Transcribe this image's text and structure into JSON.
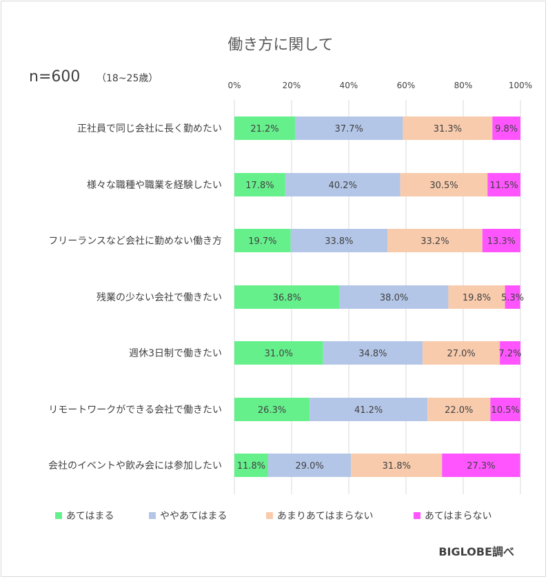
{
  "chart_data": {
    "type": "bar",
    "orientation": "horizontal-stacked-100",
    "title": "働き方に関して",
    "sample_main": "n=600",
    "sample_sub": "（18~25歳）",
    "source_note": "BIGLOBE調べ",
    "xlim": [
      0,
      100
    ],
    "x_ticks": [
      "0%",
      "20%",
      "40%",
      "60%",
      "80%",
      "100%"
    ],
    "grid": true,
    "legend_position": "bottom",
    "categories": [
      "正社員で同じ会社に長く勤めたい",
      "様々な職種や職業を経験したい",
      "フリーランスなど会社に勤めない働き方",
      "残業の少ない会社で働きたい",
      "週休3日制で働きたい",
      "リモートワークができる会社で働きたい",
      "会社のイベントや飲み会には参加したい"
    ],
    "series": [
      {
        "name": "あてはまる",
        "color": "#66f08c",
        "values": [
          21.2,
          17.8,
          19.7,
          36.8,
          31.0,
          26.3,
          11.8
        ],
        "labels": [
          "21.2%",
          "17.8%",
          "19.7%",
          "36.8%",
          "31.0%",
          "26.3%",
          "11.8%"
        ]
      },
      {
        "name": "ややあてはまる",
        "color": "#b4c6e7",
        "values": [
          37.7,
          40.2,
          33.8,
          38.0,
          34.8,
          41.2,
          29.0
        ],
        "labels": [
          "37.7%",
          "40.2%",
          "33.8%",
          "38.0%",
          "34.8%",
          "41.2%",
          "29.0%"
        ]
      },
      {
        "name": "あまりあてはまらない",
        "color": "#f8cbad",
        "values": [
          31.3,
          30.5,
          33.2,
          19.8,
          27.0,
          22.0,
          31.8
        ],
        "labels": [
          "31.3%",
          "30.5%",
          "33.2%",
          "19.8%",
          "27.0%",
          "22.0%",
          "31.8%"
        ]
      },
      {
        "name": "あてはまらない",
        "color": "#ff55ff",
        "values": [
          9.8,
          11.5,
          13.3,
          5.3,
          7.2,
          10.5,
          27.3
        ],
        "labels": [
          "9.8%",
          "11.5%",
          "13.3%",
          "5.3%",
          "7.2%",
          "10.5%",
          "27.3%"
        ]
      }
    ]
  }
}
